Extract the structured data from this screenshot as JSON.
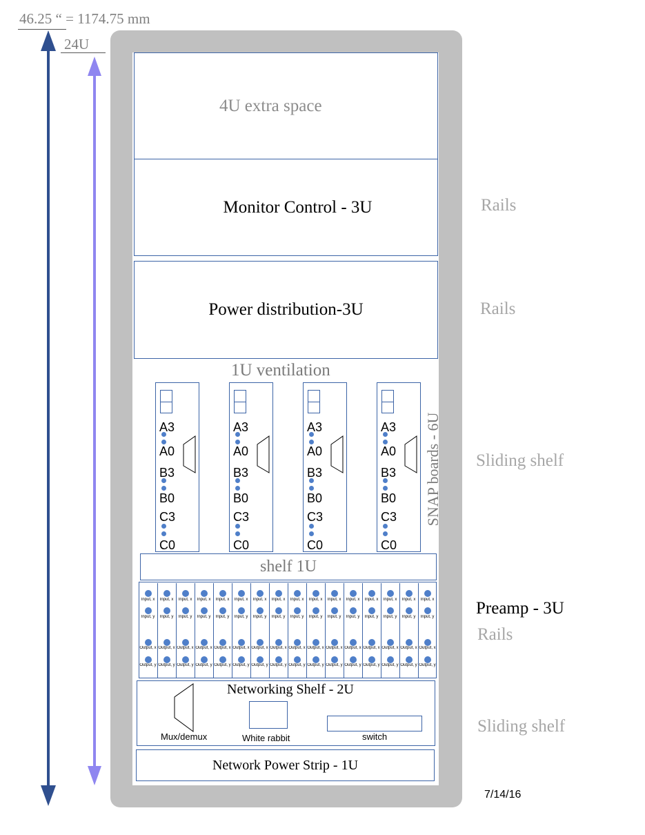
{
  "dimension_label": "46.25 “ = 1174.75 mm",
  "units_label": "24U",
  "rack": {
    "sections": {
      "extra_space": "4U extra space",
      "monitor_control": "Monitor Control - 3U",
      "power_distribution": "Power distribution-3U",
      "ventilation": "1U ventilation",
      "snap_boards": "SNAP boards - 6U",
      "shelf": "shelf 1U",
      "networking_shelf": "Networking Shelf - 2U",
      "power_strip": "Network Power Strip - 1U"
    },
    "snap_board_labels": [
      "A3",
      "A0",
      "B3",
      "B0",
      "C3",
      "C0"
    ],
    "snap_board_count": 4,
    "preamp_channel_count": 16,
    "preamp_labels": [
      "Input, x",
      "Input, y",
      "Output, x",
      "Output, y"
    ],
    "networking_items": {
      "mux": "Mux/demux",
      "white_rabbit": "White rabbit",
      "switch": "switch"
    }
  },
  "side_labels": {
    "rails_1": "Rails",
    "rails_2": "Rails",
    "sliding_shelf_1": "Sliding shelf",
    "preamp": "Preamp - 3U",
    "rails_3": "Rails",
    "sliding_shelf_2": "Sliding shelf"
  },
  "date": "7/14/16",
  "colors": {
    "frame": "#c0c0c0",
    "outline": "#3b63a6",
    "dark_arrow": "#2f4f8f",
    "light_arrow": "#8f86f0",
    "dot": "#4f7fc9"
  }
}
